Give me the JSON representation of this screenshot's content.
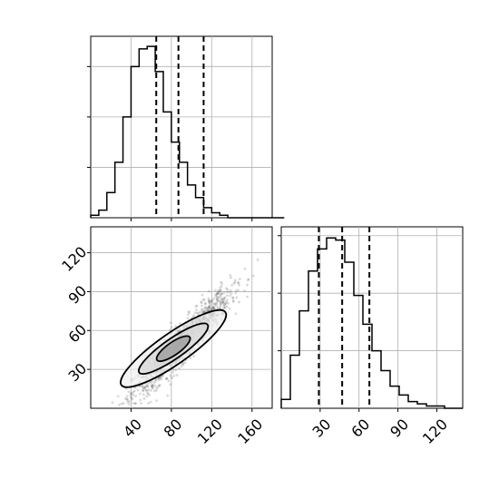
{
  "chart_data": [
    {
      "type": "histogram",
      "panel": "marginal-x",
      "bins": {
        "start": 0,
        "width": 8,
        "counts": [
          1,
          3,
          10,
          22,
          40,
          60,
          67,
          68,
          58,
          42,
          30,
          22,
          13,
          8,
          4,
          2,
          1,
          0,
          0,
          0,
          0,
          0,
          0,
          0,
          0
        ]
      },
      "ylim": [
        0,
        72
      ],
      "quantile_lines": [
        65,
        87,
        112
      ],
      "grid": true
    },
    {
      "type": "scatter",
      "panel": "joint",
      "xlim": [
        0,
        180
      ],
      "ylim": [
        0,
        140
      ],
      "x_ticks": [
        "40",
        "80",
        "120",
        "160"
      ],
      "y_ticks": [
        "30",
        "60",
        "90",
        "120"
      ],
      "x_tick_values": [
        40,
        80,
        120,
        160
      ],
      "y_tick_values": [
        30,
        60,
        90,
        120
      ],
      "point_cloud": {
        "mean": [
          90,
          50
        ],
        "std": [
          24,
          20
        ],
        "correlation": 0.93
      },
      "contour_levels": [
        "outer",
        "middle",
        "inner"
      ],
      "grid": true
    },
    {
      "type": "histogram",
      "panel": "marginal-y",
      "bins": {
        "start": 0,
        "width": 7,
        "counts": [
          4,
          24,
          44,
          62,
          72,
          77,
          76,
          66,
          51,
          38,
          26,
          17,
          10,
          6,
          3,
          2,
          1,
          1,
          0,
          0
        ]
      },
      "ylim": [
        0,
        82
      ],
      "x_ticks": [
        "30",
        "60",
        "90",
        "120"
      ],
      "x_tick_values": [
        30,
        60,
        90,
        120
      ],
      "xlim": [
        0,
        140
      ],
      "quantile_lines": [
        29,
        47,
        68
      ],
      "grid": true
    }
  ]
}
